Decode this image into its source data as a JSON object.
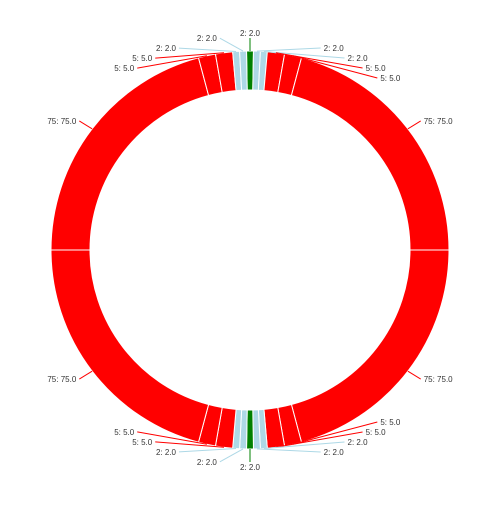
{
  "chart_data": {
    "type": "pie",
    "donut": true,
    "slices": [
      {
        "label": "2",
        "value": 2.0,
        "display": "2: 2.0",
        "color": "#008000"
      },
      {
        "label": "2",
        "value": 2.0,
        "display": "2: 2.0",
        "color": "#add8e6"
      },
      {
        "label": "2",
        "value": 2.0,
        "display": "2: 2.0",
        "color": "#add8e6"
      },
      {
        "label": "5",
        "value": 5.0,
        "display": "5: 5.0",
        "color": "#ff0000"
      },
      {
        "label": "5",
        "value": 5.0,
        "display": "5: 5.0",
        "color": "#ff0000"
      },
      {
        "label": "75",
        "value": 75.0,
        "display": "75: 75.0",
        "color": "#ff0000"
      },
      {
        "label": "75",
        "value": 75.0,
        "display": "75: 75.0",
        "color": "#ff0000"
      },
      {
        "label": "5",
        "value": 5.0,
        "display": "5: 5.0",
        "color": "#ff0000"
      },
      {
        "label": "5",
        "value": 5.0,
        "display": "5: 5.0",
        "color": "#ff0000"
      },
      {
        "label": "2",
        "value": 2.0,
        "display": "2: 2.0",
        "color": "#add8e6"
      },
      {
        "label": "2",
        "value": 2.0,
        "display": "2: 2.0",
        "color": "#add8e6"
      },
      {
        "label": "2",
        "value": 2.0,
        "display": "2: 2.0",
        "color": "#008000"
      },
      {
        "label": "2",
        "value": 2.0,
        "display": "2: 2.0",
        "color": "#add8e6"
      },
      {
        "label": "2",
        "value": 2.0,
        "display": "2: 2.0",
        "color": "#add8e6"
      },
      {
        "label": "5",
        "value": 5.0,
        "display": "5: 5.0",
        "color": "#ff0000"
      },
      {
        "label": "5",
        "value": 5.0,
        "display": "5: 5.0",
        "color": "#ff0000"
      },
      {
        "label": "75",
        "value": 75.0,
        "display": "75: 75.0",
        "color": "#ff0000"
      },
      {
        "label": "75",
        "value": 75.0,
        "display": "75: 75.0",
        "color": "#ff0000"
      },
      {
        "label": "5",
        "value": 5.0,
        "display": "5: 5.0",
        "color": "#ff0000"
      },
      {
        "label": "5",
        "value": 5.0,
        "display": "5: 5.0",
        "color": "#ff0000"
      },
      {
        "label": "2",
        "value": 2.0,
        "display": "2: 2.0",
        "color": "#add8e6"
      },
      {
        "label": "2",
        "value": 2.0,
        "display": "2: 2.0",
        "color": "#add8e6"
      }
    ],
    "legend": "none",
    "slice_border_color": "#ffffff"
  }
}
